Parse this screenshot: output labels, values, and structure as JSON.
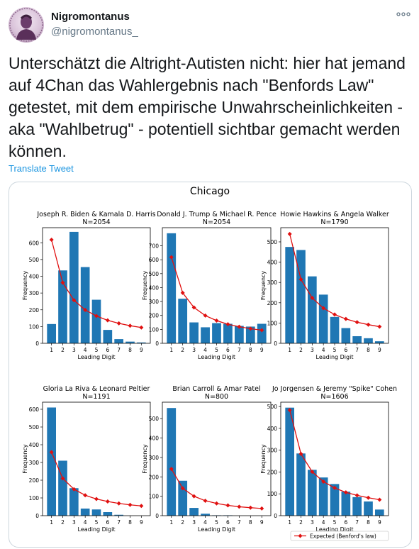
{
  "tweet": {
    "display_name": "Nigromontanus",
    "handle": "@nigromontanus_",
    "text": "Unterschätzt die Altright-Autisten nicht: hier hat jemand auf 4Chan das Wahlergebnis nach \"Benfords Law\" getestet, mit dem empirische Unwahrscheinlichkeiten - aka \"Wahlbetrug\" - potentiell sichtbar gemacht werden können.",
    "translate_label": "Translate Tweet",
    "more_icon": "more-dots-icon",
    "avatar_icon": "profile-portrait-icon"
  },
  "colors": {
    "bar": "#1f77b4",
    "expected": "#e01010",
    "link": "#1b95e0",
    "handle": "#657786"
  },
  "chart_data": {
    "type": "bar",
    "suptitle": "Chicago",
    "xlabel": "Leading Digit",
    "ylabel": "Frequency",
    "categories": [
      "1",
      "2",
      "3",
      "4",
      "5",
      "6",
      "7",
      "8",
      "9"
    ],
    "legend": {
      "label": "Expected (Benford's law)",
      "placement": "bottom-right"
    },
    "panels": [
      {
        "title": "Joseph R. Biden & Kamala D. Harris",
        "n_label": "N=2054",
        "yticks": [
          0,
          100,
          200,
          300,
          400,
          500,
          600
        ],
        "ylim": [
          0,
          690
        ],
        "values": [
          115,
          435,
          665,
          455,
          260,
          80,
          25,
          10,
          5
        ],
        "expected": [
          618,
          362,
          257,
          199,
          163,
          137,
          119,
          105,
          94
        ]
      },
      {
        "title": "Donald J. Trump & Michael R. Pence",
        "n_label": "N=2054",
        "yticks": [
          0,
          100,
          200,
          300,
          400,
          500,
          600,
          700
        ],
        "ylim": [
          0,
          830
        ],
        "values": [
          790,
          320,
          150,
          115,
          145,
          140,
          125,
          120,
          140
        ],
        "expected": [
          618,
          362,
          257,
          199,
          163,
          137,
          119,
          105,
          94
        ]
      },
      {
        "title": "Howie Hawkins & Angela Walker",
        "n_label": "N=1790",
        "yticks": [
          0,
          100,
          200,
          300,
          400,
          500
        ],
        "ylim": [
          0,
          570
        ],
        "values": [
          475,
          460,
          330,
          240,
          130,
          75,
          35,
          25,
          10
        ],
        "expected": [
          539,
          315,
          224,
          173,
          142,
          120,
          104,
          92,
          82
        ]
      },
      {
        "title": "Gloria La Riva & Leonard Peltier",
        "n_label": "N=1191",
        "yticks": [
          0,
          100,
          200,
          300,
          400,
          500,
          600
        ],
        "ylim": [
          0,
          640
        ],
        "values": [
          610,
          310,
          155,
          40,
          35,
          20,
          5,
          0,
          0
        ],
        "expected": [
          358,
          210,
          149,
          115,
          94,
          80,
          69,
          61,
          55
        ]
      },
      {
        "title": "Brian Carroll & Amar Patel",
        "n_label": "N=800",
        "yticks": [
          0,
          100,
          200,
          300,
          400,
          500
        ],
        "ylim": [
          0,
          585
        ],
        "values": [
          555,
          180,
          40,
          10,
          2,
          2,
          0,
          0,
          0
        ],
        "expected": [
          241,
          141,
          100,
          77,
          63,
          53,
          46,
          41,
          37
        ]
      },
      {
        "title": "Jo Jorgensen & Jeremy \"Spike\" Cohen",
        "n_label": "N=1606",
        "yticks": [
          0,
          100,
          200,
          300,
          400,
          500
        ],
        "ylim": [
          0,
          520
        ],
        "values": [
          495,
          285,
          210,
          175,
          145,
          110,
          85,
          65,
          28
        ],
        "expected": [
          484,
          283,
          201,
          156,
          127,
          107,
          93,
          82,
          73
        ]
      }
    ]
  }
}
